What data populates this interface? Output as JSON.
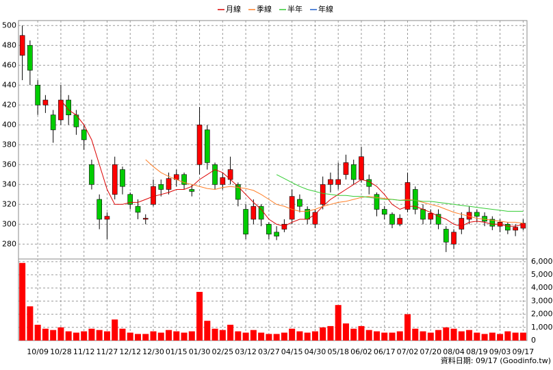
{
  "chart_data": [
    {
      "type": "candlestick",
      "up_color": "#ff0000",
      "down_color": "#00cc00",
      "grid": true,
      "open": [
        470,
        480,
        440,
        420,
        410,
        405,
        425,
        410,
        395,
        360,
        325,
        305,
        330,
        355,
        330,
        318,
        305,
        320,
        340,
        335,
        345,
        350,
        335,
        360,
        395,
        360,
        340,
        345,
        340,
        315,
        305,
        318,
        300,
        292,
        295,
        305,
        325,
        315,
        300,
        320,
        340,
        340,
        350,
        360,
        345,
        345,
        330,
        315,
        310,
        300,
        315,
        335,
        315,
        305,
        310,
        295,
        280,
        295,
        305,
        312,
        308,
        305,
        298,
        300,
        294,
        296
      ],
      "high": [
        500,
        485,
        445,
        430,
        415,
        440,
        430,
        415,
        400,
        365,
        330,
        312,
        368,
        358,
        332,
        325,
        310,
        345,
        345,
        352,
        355,
        352,
        340,
        418,
        400,
        362,
        352,
        368,
        342,
        320,
        325,
        320,
        302,
        298,
        305,
        335,
        330,
        318,
        315,
        348,
        352,
        362,
        370,
        365,
        378,
        350,
        332,
        318,
        312,
        310,
        352,
        338,
        320,
        315,
        315,
        298,
        295,
        312,
        318,
        315,
        312,
        308,
        305,
        302,
        300,
        305
      ],
      "low": [
        445,
        440,
        410,
        412,
        382,
        400,
        400,
        390,
        375,
        335,
        295,
        285,
        325,
        330,
        315,
        305,
        300,
        318,
        328,
        330,
        338,
        335,
        328,
        350,
        355,
        335,
        335,
        340,
        318,
        285,
        300,
        298,
        285,
        284,
        292,
        300,
        312,
        300,
        296,
        315,
        332,
        335,
        345,
        340,
        342,
        330,
        308,
        305,
        296,
        298,
        312,
        310,
        300,
        300,
        295,
        272,
        275,
        290,
        300,
        302,
        298,
        294,
        292,
        290,
        288,
        294
      ],
      "close": [
        490,
        455,
        420,
        425,
        395,
        425,
        410,
        398,
        385,
        340,
        305,
        308,
        360,
        338,
        320,
        312,
        306,
        338,
        335,
        346,
        350,
        340,
        333,
        400,
        362,
        340,
        347,
        355,
        325,
        290,
        318,
        305,
        290,
        288,
        300,
        328,
        318,
        305,
        312,
        340,
        345,
        345,
        362,
        345,
        368,
        338,
        315,
        310,
        300,
        306,
        342,
        315,
        305,
        311,
        300,
        282,
        292,
        306,
        312,
        308,
        303,
        298,
        302,
        294,
        297,
        301
      ],
      "series": [
        {
          "name": "月線",
          "color": "#dd0000",
          "values": [
            null,
            null,
            null,
            null,
            null,
            425,
            415,
            410,
            400,
            385,
            360,
            335,
            320,
            320,
            322,
            322,
            325,
            328,
            330,
            332,
            335,
            335,
            338,
            345,
            350,
            355,
            352,
            345,
            338,
            330,
            322,
            315,
            305,
            300,
            298,
            302,
            305,
            305,
            310,
            318,
            325,
            330,
            335,
            340,
            345,
            343,
            338,
            330,
            320,
            315,
            318,
            318,
            315,
            312,
            308,
            305,
            300,
            298,
            302,
            303,
            302,
            300,
            300,
            298,
            298,
            300
          ]
        },
        {
          "name": "季線",
          "color": "#ff7f27",
          "values": [
            null,
            null,
            null,
            null,
            null,
            null,
            null,
            null,
            null,
            null,
            null,
            null,
            null,
            null,
            null,
            null,
            365,
            358,
            352,
            348,
            345,
            342,
            340,
            338,
            336,
            335,
            337,
            338,
            337,
            336,
            334,
            330,
            325,
            320,
            318,
            315,
            313,
            313,
            315,
            318,
            320,
            322,
            323,
            325,
            327,
            328,
            327,
            326,
            325,
            324,
            325,
            324,
            322,
            320,
            318,
            315,
            312,
            310,
            308,
            306,
            305,
            304,
            303,
            302,
            302,
            301
          ]
        },
        {
          "name": "半年",
          "color": "#33cc33",
          "values": [
            null,
            null,
            null,
            null,
            null,
            null,
            null,
            null,
            null,
            null,
            null,
            null,
            null,
            null,
            null,
            null,
            null,
            null,
            null,
            null,
            null,
            null,
            null,
            null,
            null,
            null,
            null,
            null,
            null,
            null,
            null,
            null,
            null,
            350,
            346,
            342,
            338,
            335,
            333,
            331,
            330,
            329,
            329,
            328,
            328,
            327,
            326,
            325,
            325,
            324,
            324,
            324,
            323,
            323,
            322,
            321,
            320,
            319,
            318,
            317,
            316,
            315,
            314,
            313,
            313,
            313
          ]
        },
        {
          "name": "年線",
          "color": "#1f5fcc",
          "values": [
            null,
            null,
            null,
            null,
            null,
            null,
            null,
            null,
            null,
            null,
            null,
            null,
            null,
            null,
            null,
            null,
            null,
            null,
            null,
            null,
            null,
            null,
            null,
            null,
            null,
            null,
            null,
            null,
            null,
            null,
            null,
            null,
            null,
            null,
            null,
            null,
            null,
            null,
            null,
            null,
            null,
            null,
            null,
            null,
            null,
            null,
            null,
            null,
            null,
            null,
            null,
            null,
            null,
            null,
            null,
            null,
            null,
            null,
            null,
            null,
            null,
            null,
            null,
            null,
            null,
            null
          ]
        }
      ],
      "ylim": [
        265,
        505
      ],
      "yticks": [
        280,
        300,
        320,
        340,
        360,
        380,
        400,
        420,
        440,
        460,
        480,
        500
      ]
    },
    {
      "type": "bar",
      "color": "#ff0000",
      "grid": true,
      "categories": [
        null,
        null,
        "10/09",
        null,
        null,
        "10/28",
        null,
        null,
        "11/12",
        null,
        null,
        "11/27",
        null,
        null,
        "12/12",
        null,
        null,
        "12/30",
        null,
        null,
        "01/15",
        null,
        null,
        "01/30",
        null,
        null,
        "02/25",
        null,
        null,
        "03/12",
        null,
        null,
        "03/27",
        null,
        null,
        "04/15",
        null,
        null,
        "04/30",
        null,
        null,
        "05/18",
        null,
        null,
        "06/02",
        null,
        null,
        "06/17",
        null,
        null,
        "07/02",
        null,
        null,
        "07/20",
        null,
        null,
        "08/04",
        null,
        null,
        "08/19",
        null,
        null,
        "09/03",
        null,
        null,
        "09/17"
      ],
      "values": [
        5900,
        2600,
        1200,
        900,
        800,
        1000,
        700,
        600,
        700,
        900,
        800,
        700,
        1600,
        900,
        600,
        500,
        500,
        700,
        600,
        800,
        700,
        600,
        700,
        3700,
        1500,
        900,
        800,
        1200,
        700,
        600,
        800,
        600,
        500,
        500,
        600,
        900,
        700,
        600,
        700,
        1000,
        1100,
        2700,
        1300,
        900,
        1100,
        800,
        700,
        600,
        600,
        700,
        2000,
        900,
        700,
        600,
        800,
        1000,
        900,
        700,
        800,
        600,
        500,
        600,
        500,
        700,
        600,
        600
      ],
      "ylim": [
        0,
        6200
      ],
      "yticks": [
        0,
        {
          "value": 1000,
          "label": "1,000"
        },
        {
          "value": 2000,
          "label": "2,000"
        },
        {
          "value": 3000,
          "label": "3,000"
        },
        {
          "value": 4000,
          "label": "4,000"
        },
        {
          "value": 5000,
          "label": "5,000"
        },
        {
          "value": 6000,
          "label": "6,000"
        }
      ],
      "note": "資料日期: 09/17 (Goodinfo.tw)"
    }
  ]
}
